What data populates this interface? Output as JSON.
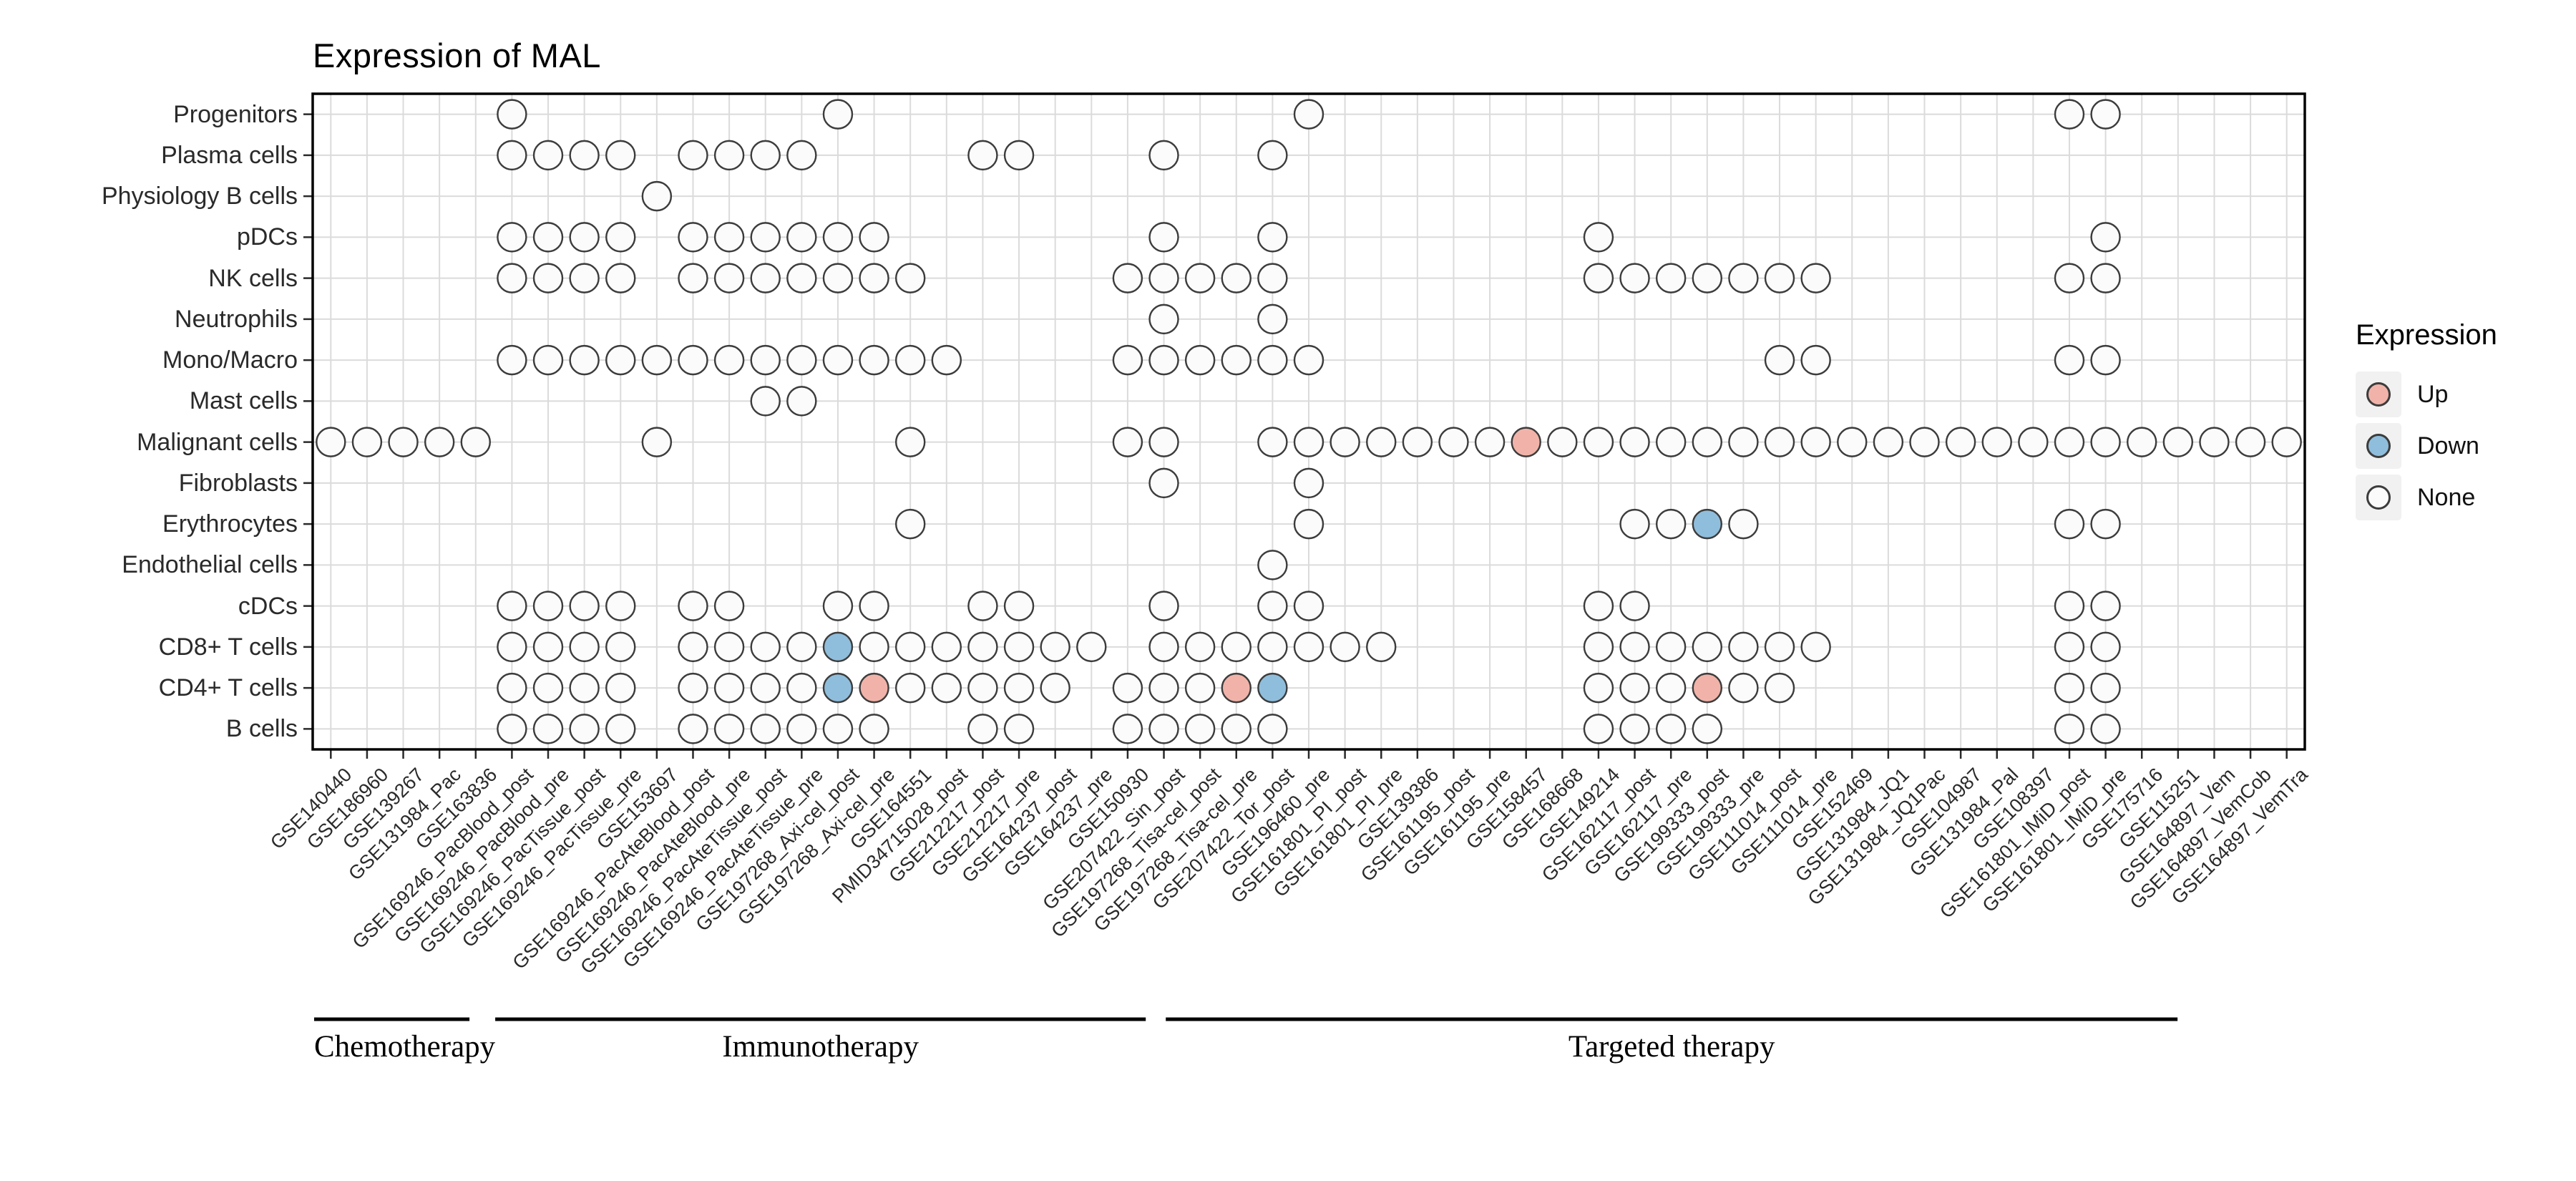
{
  "title": "Expression of MAL",
  "legend": {
    "title": "Expression",
    "items": [
      {
        "key": "up",
        "label": "Up"
      },
      {
        "key": "down",
        "label": "Down"
      },
      {
        "key": "none",
        "label": "None"
      }
    ]
  },
  "chart_data": {
    "type": "scatter",
    "title": "Expression of MAL",
    "x_axis_label": "",
    "y_axis_label": "",
    "grid": true,
    "legend_position": "right",
    "colors": {
      "up": "#F1B3A9",
      "down": "#8FBEDC",
      "none": "#FBFBFB",
      "stroke": "#3C3C3C",
      "grid": "#DBDBDB",
      "tick": "#2a2a2a",
      "panel_border": "#000000"
    },
    "columns": [
      "GSE140440",
      "GSE186960",
      "GSE139267",
      "GSE131984_Pac",
      "GSE163836",
      "GSE169246_PacBlood_post",
      "GSE169246_PacBlood_pre",
      "GSE169246_PacTissue_post",
      "GSE169246_PacTissue_pre",
      "GSE153697",
      "GSE169246_PacAteBlood_post",
      "GSE169246_PacAteBlood_pre",
      "GSE169246_PacAteTissue_post",
      "GSE169246_PacAteTissue_pre",
      "GSE197268_Axi-cel_post",
      "GSE197268_Axi-cel_pre",
      "GSE164551",
      "PMID34715028_post",
      "GSE212217_post",
      "GSE212217_pre",
      "GSE164237_post",
      "GSE164237_pre",
      "GSE150930",
      "GSE207422_Sin_post",
      "GSE197268_Tisa-cel_post",
      "GSE197268_Tisa-cel_pre",
      "GSE207422_Tor_post",
      "GSE196460_pre",
      "GSE161801_PI_post",
      "GSE161801_PI_pre",
      "GSE139386",
      "GSE161195_post",
      "GSE161195_pre",
      "GSE158457",
      "GSE168668",
      "GSE149214",
      "GSE162117_post",
      "GSE162117_pre",
      "GSE199333_post",
      "GSE199333_pre",
      "GSE111014_post",
      "GSE111014_pre",
      "GSE152469",
      "GSE131984_JQ1",
      "GSE131984_JQ1Pac",
      "GSE104987",
      "GSE131984_Pal",
      "GSE108397",
      "GSE161801_IMiD_post",
      "GSE161801_IMiD_pre",
      "GSE175716",
      "GSE115251",
      "GSE164897_Vem",
      "GSE164897_VemCob",
      "GSE164897_VemTra"
    ],
    "rows": [
      {
        "label": "Progenitors",
        "none": [
          6,
          15,
          28,
          49,
          50
        ],
        "up": [],
        "down": []
      },
      {
        "label": "Plasma cells",
        "none": [
          6,
          7,
          8,
          9,
          11,
          12,
          13,
          14,
          19,
          20,
          24,
          27
        ],
        "up": [],
        "down": []
      },
      {
        "label": "Physiology B cells",
        "none": [
          10
        ],
        "up": [],
        "down": []
      },
      {
        "label": "pDCs",
        "none": [
          6,
          7,
          8,
          9,
          11,
          12,
          13,
          14,
          15,
          16,
          24,
          27,
          36,
          50
        ],
        "up": [],
        "down": []
      },
      {
        "label": "NK cells",
        "none": [
          6,
          7,
          8,
          9,
          11,
          12,
          13,
          14,
          15,
          16,
          17,
          23,
          24,
          25,
          26,
          27,
          36,
          37,
          38,
          39,
          40,
          41,
          42,
          49,
          50
        ],
        "up": [],
        "down": []
      },
      {
        "label": "Neutrophils",
        "none": [
          24,
          27
        ],
        "up": [],
        "down": []
      },
      {
        "label": "Mono/Macro",
        "none": [
          6,
          7,
          8,
          9,
          10,
          11,
          12,
          13,
          14,
          15,
          16,
          17,
          18,
          23,
          24,
          25,
          26,
          27,
          28,
          41,
          42,
          49,
          50
        ],
        "up": [],
        "down": []
      },
      {
        "label": "Mast cells",
        "none": [
          13,
          14
        ],
        "up": [],
        "down": []
      },
      {
        "label": "Malignant cells",
        "none": [
          1,
          2,
          3,
          4,
          5,
          10,
          17,
          23,
          24,
          27,
          28,
          29,
          30,
          31,
          32,
          33,
          35,
          36,
          37,
          38,
          39,
          40,
          41,
          42,
          43,
          44,
          45,
          46,
          47,
          48,
          49,
          50,
          51,
          52,
          53,
          54,
          55
        ],
        "up": [
          34
        ],
        "down": []
      },
      {
        "label": "Fibroblasts",
        "none": [
          24,
          28
        ],
        "up": [],
        "down": []
      },
      {
        "label": "Erythrocytes",
        "none": [
          17,
          28,
          37,
          38,
          40,
          49,
          50
        ],
        "up": [],
        "down": [
          39
        ]
      },
      {
        "label": "Endothelial cells",
        "none": [
          27
        ],
        "up": [],
        "down": []
      },
      {
        "label": "cDCs",
        "none": [
          6,
          7,
          8,
          9,
          11,
          12,
          15,
          16,
          19,
          20,
          24,
          27,
          28,
          36,
          37,
          49,
          50
        ],
        "up": [],
        "down": []
      },
      {
        "label": "CD8+ T cells",
        "none": [
          6,
          7,
          8,
          9,
          11,
          12,
          13,
          14,
          16,
          17,
          18,
          19,
          20,
          21,
          22,
          24,
          25,
          26,
          27,
          28,
          29,
          30,
          36,
          37,
          38,
          39,
          40,
          41,
          42,
          49,
          50
        ],
        "up": [],
        "down": [
          15
        ]
      },
      {
        "label": "CD4+ T cells",
        "none": [
          6,
          7,
          8,
          9,
          11,
          12,
          13,
          14,
          17,
          18,
          19,
          20,
          21,
          23,
          24,
          25,
          36,
          37,
          38,
          40,
          41,
          49,
          50
        ],
        "up": [
          16,
          26,
          39
        ],
        "down": [
          15,
          27
        ]
      },
      {
        "label": "B cells",
        "none": [
          6,
          7,
          8,
          9,
          11,
          12,
          13,
          14,
          15,
          16,
          19,
          20,
          23,
          24,
          25,
          26,
          27,
          36,
          37,
          38,
          39,
          49,
          50
        ],
        "up": [],
        "down": []
      }
    ],
    "groups": [
      {
        "label": "Chemotherapy",
        "from_col": 1,
        "to_col": 5
      },
      {
        "label": "Immunotherapy",
        "from_col": 6,
        "to_col": 23
      },
      {
        "label": "Targeted therapy",
        "from_col": 24,
        "to_col": 52
      }
    ]
  }
}
